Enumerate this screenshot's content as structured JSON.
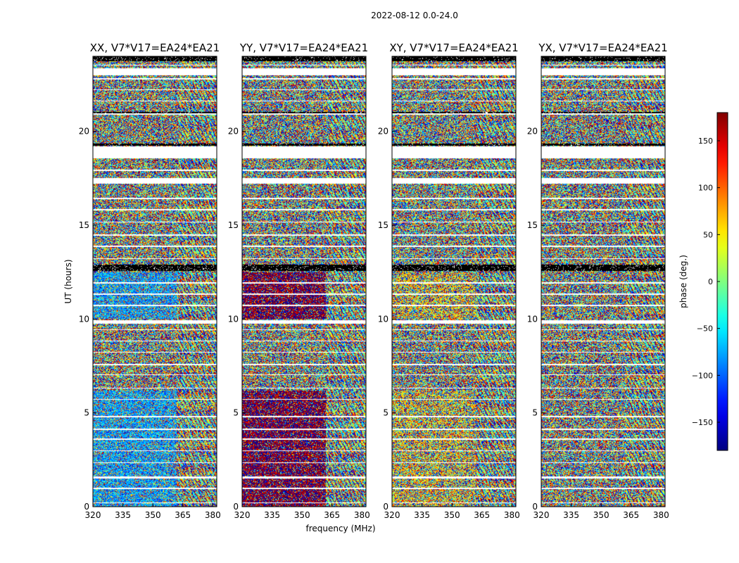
{
  "figure": {
    "suptitle": "2022-08-12 0.0-24.0"
  },
  "chart_data": {
    "type": "heatmap",
    "title": "2022-08-12 0.0-24.0",
    "xlabel": "frequency (MHz)",
    "ylabel": "UT (hours)",
    "xlim": [
      320,
      382
    ],
    "ylim": [
      0,
      24
    ],
    "x_ticks": [
      320,
      335,
      350,
      365,
      380
    ],
    "y_ticks": [
      0,
      5,
      10,
      15,
      20
    ],
    "panels": [
      {
        "name": "XX",
        "title": "XX, V7*V17=EA24*EA21",
        "bias": -80,
        "bias_strength": 0.55
      },
      {
        "name": "YY",
        "title": "YY, V7*V17=EA24*EA21",
        "bias": 175,
        "bias_strength": 0.75
      },
      {
        "name": "XY",
        "title": "XY, V7*V17=EA24*EA21",
        "bias": 60,
        "bias_strength": 0.25
      },
      {
        "name": "YX",
        "title": "YX, V7*V17=EA24*EA21",
        "bias": 0,
        "bias_strength": 0.0
      }
    ],
    "colorbar": {
      "label": "phase (deg.)",
      "range": [
        -180,
        180
      ],
      "ticks": [
        150,
        100,
        50,
        0,
        -50,
        -100,
        -150
      ],
      "tick_labels": [
        "150",
        "100",
        "50",
        "0",
        "−50",
        "−100",
        "−150"
      ],
      "colormap": "jet"
    },
    "coherent_band_mhz": [
      320,
      362
    ],
    "coherent_time_ranges_hours": [
      [
        0.0,
        6.2
      ],
      [
        10.0,
        12.5
      ]
    ],
    "flagged_time_ranges_hours": [
      [
        0.18,
        0.22
      ],
      [
        0.95,
        1.0
      ],
      [
        1.5,
        1.6
      ],
      [
        2.32,
        2.38
      ],
      [
        2.95,
        3.0
      ],
      [
        3.55,
        3.62
      ],
      [
        4.1,
        4.15
      ],
      [
        4.75,
        4.82
      ],
      [
        5.7,
        5.75
      ],
      [
        6.3,
        6.35
      ],
      [
        7.0,
        7.05
      ],
      [
        7.55,
        7.62
      ],
      [
        8.2,
        8.25
      ],
      [
        8.8,
        8.85
      ],
      [
        9.4,
        9.45
      ],
      [
        9.75,
        9.95
      ],
      [
        10.7,
        10.75
      ],
      [
        11.3,
        11.35
      ],
      [
        11.9,
        11.95
      ],
      [
        13.2,
        13.25
      ],
      [
        13.85,
        13.9
      ],
      [
        14.45,
        14.5
      ],
      [
        15.15,
        15.2
      ],
      [
        15.8,
        15.85
      ],
      [
        16.4,
        16.47
      ],
      [
        17.2,
        17.5
      ],
      [
        17.9,
        17.95
      ],
      [
        18.55,
        19.2
      ],
      [
        20.9,
        20.95
      ],
      [
        21.6,
        21.65
      ],
      [
        22.2,
        22.25
      ],
      [
        22.75,
        22.82
      ],
      [
        23.0,
        23.35
      ],
      [
        23.5,
        23.55
      ]
    ],
    "no_data_time_ranges_hours": [
      [
        12.55,
        12.9
      ],
      [
        19.25,
        19.35
      ],
      [
        20.95,
        21.05
      ],
      [
        23.75,
        24.0
      ]
    ]
  }
}
